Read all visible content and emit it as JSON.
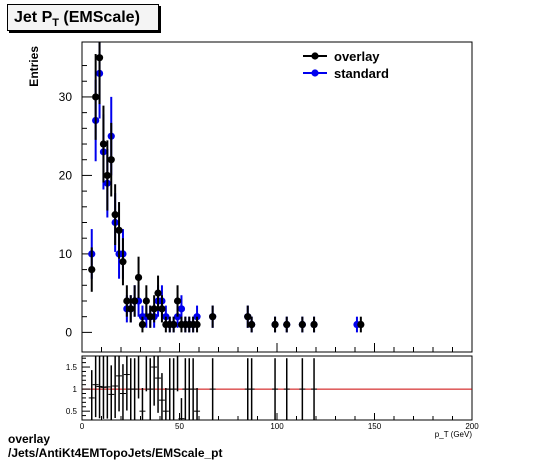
{
  "title": {
    "main": "Jet P",
    "sub": "T",
    "suffix": " (EMScale)"
  },
  "footer": {
    "line1": "overlay",
    "line2": "/Jets/AntiKt4EMTopoJets/EMScale_pt"
  },
  "colors": {
    "overlay": "#000000",
    "standard": "#0000ee",
    "ratio_line": "#cc0000"
  },
  "chart_data": {
    "type": "scatter",
    "ylabel": "Entries",
    "xlabel": "p_T (GeV)",
    "xlim": [
      0,
      200
    ],
    "ylim": [
      -2.5,
      37
    ],
    "y_ticks": [
      0,
      10,
      20,
      30
    ],
    "x_ticks": [
      0,
      50,
      100,
      150,
      200
    ],
    "legend": {
      "placement": "top-right",
      "entries": [
        "overlay",
        "standard"
      ]
    },
    "series": [
      {
        "name": "overlay",
        "x": [
          5,
          7,
          9,
          11,
          13,
          15,
          17,
          19,
          21,
          23,
          25,
          27,
          29,
          31,
          33,
          35,
          37,
          39,
          41,
          43,
          45,
          47,
          49,
          51,
          53,
          55,
          57,
          59,
          67,
          85,
          87,
          99,
          105,
          113,
          119,
          143
        ],
        "y": [
          8,
          30,
          35,
          24,
          20,
          22,
          15,
          13,
          9,
          4,
          3,
          4,
          7,
          1,
          4,
          2,
          3,
          5,
          3,
          1,
          1,
          1,
          4,
          1,
          1,
          1,
          1,
          1,
          2,
          2,
          1,
          1,
          1,
          1,
          1,
          1
        ]
      },
      {
        "name": "standard",
        "x": [
          5,
          7,
          9,
          11,
          13,
          15,
          17,
          19,
          21,
          23,
          25,
          27,
          29,
          31,
          33,
          35,
          37,
          39,
          41,
          43,
          45,
          47,
          49,
          51,
          53,
          55,
          57,
          59,
          67,
          85,
          87,
          99,
          105,
          113,
          119,
          141
        ],
        "y": [
          10,
          27,
          33,
          23,
          19,
          25,
          14,
          10,
          10,
          3,
          3,
          4,
          4,
          2,
          2,
          2,
          2,
          4,
          4,
          2,
          1,
          1,
          2,
          3,
          1,
          1,
          1,
          2,
          2,
          2,
          1,
          1,
          1,
          1,
          1,
          1
        ]
      }
    ],
    "ratio_panel": {
      "ylim": [
        0.3,
        1.75
      ],
      "y_ticks": [
        0.5,
        1,
        1.5
      ],
      "y_tick_labels": [
        "0.5",
        "1",
        "1.5"
      ],
      "reference": 1.0,
      "x": [
        5,
        7,
        9,
        11,
        13,
        15,
        17,
        19,
        21,
        23,
        25,
        27,
        29,
        31,
        33,
        35,
        37,
        39,
        41,
        43,
        45,
        47,
        49,
        51,
        53,
        55,
        57,
        59,
        67,
        85,
        87,
        99,
        105,
        113,
        119
      ],
      "y": [
        0.8,
        1.1,
        1.06,
        1.04,
        1.05,
        0.88,
        1.07,
        1.3,
        0.9,
        1.33,
        1.0,
        1.0,
        1.75,
        0.5,
        2.0,
        1.0,
        1.5,
        1.25,
        0.75,
        0.5,
        1.0,
        1.0,
        2.0,
        0.33,
        1.0,
        1.0,
        1.0,
        0.5,
        1.0,
        1.0,
        1.0,
        1.0,
        1.0,
        1.0,
        1.0
      ]
    }
  }
}
